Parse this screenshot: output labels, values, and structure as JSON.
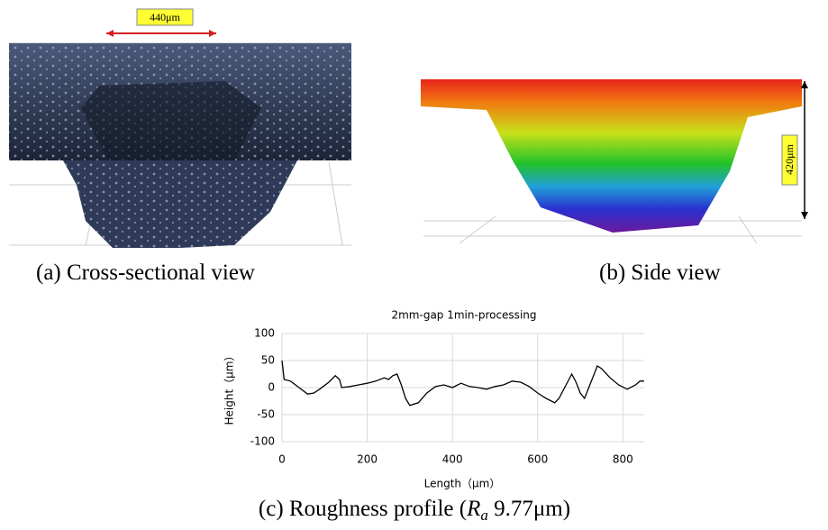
{
  "panels": [
    {
      "caption": "(a) Cross-sectional view",
      "annotation": "440μm"
    },
    {
      "caption": "(b) Side view",
      "annotation": "420μm"
    }
  ],
  "figure_caption": [
    "(c) Roughness profile (",
    "R",
    "a",
    " 9.77μm)"
  ],
  "chart_data": {
    "type": "line",
    "title": "2mm-gap 1min-processing",
    "x_label": "Length（μm）",
    "y_label": "Height（μm）",
    "x": [
      0,
      5,
      20,
      40,
      60,
      75,
      90,
      110,
      125,
      135,
      140,
      160,
      180,
      200,
      220,
      240,
      250,
      260,
      270,
      280,
      290,
      300,
      320,
      340,
      360,
      380,
      400,
      420,
      440,
      460,
      480,
      500,
      520,
      540,
      560,
      580,
      600,
      620,
      640,
      650,
      670,
      680,
      690,
      700,
      710,
      720,
      740,
      750,
      770,
      790,
      810,
      830,
      840,
      850
    ],
    "series": [
      {
        "color": "#000000",
        "values": [
          50,
          15,
          12,
          0,
          -12,
          -10,
          -2,
          10,
          22,
          15,
          0,
          2,
          5,
          8,
          12,
          18,
          15,
          22,
          25,
          5,
          -20,
          -33,
          -28,
          -10,
          2,
          5,
          0,
          8,
          2,
          0,
          -3,
          2,
          5,
          12,
          10,
          2,
          -10,
          -20,
          -28,
          -20,
          10,
          25,
          10,
          -10,
          -20,
          0,
          40,
          35,
          18,
          5,
          -3,
          5,
          12,
          12
        ]
      }
    ],
    "xlim": [
      0,
      850
    ],
    "xticks": [
      0,
      200,
      400,
      600,
      800
    ],
    "ylim": [
      -100,
      100
    ],
    "yticks": [
      100,
      50,
      0,
      -50,
      -100
    ],
    "grid": true
  }
}
